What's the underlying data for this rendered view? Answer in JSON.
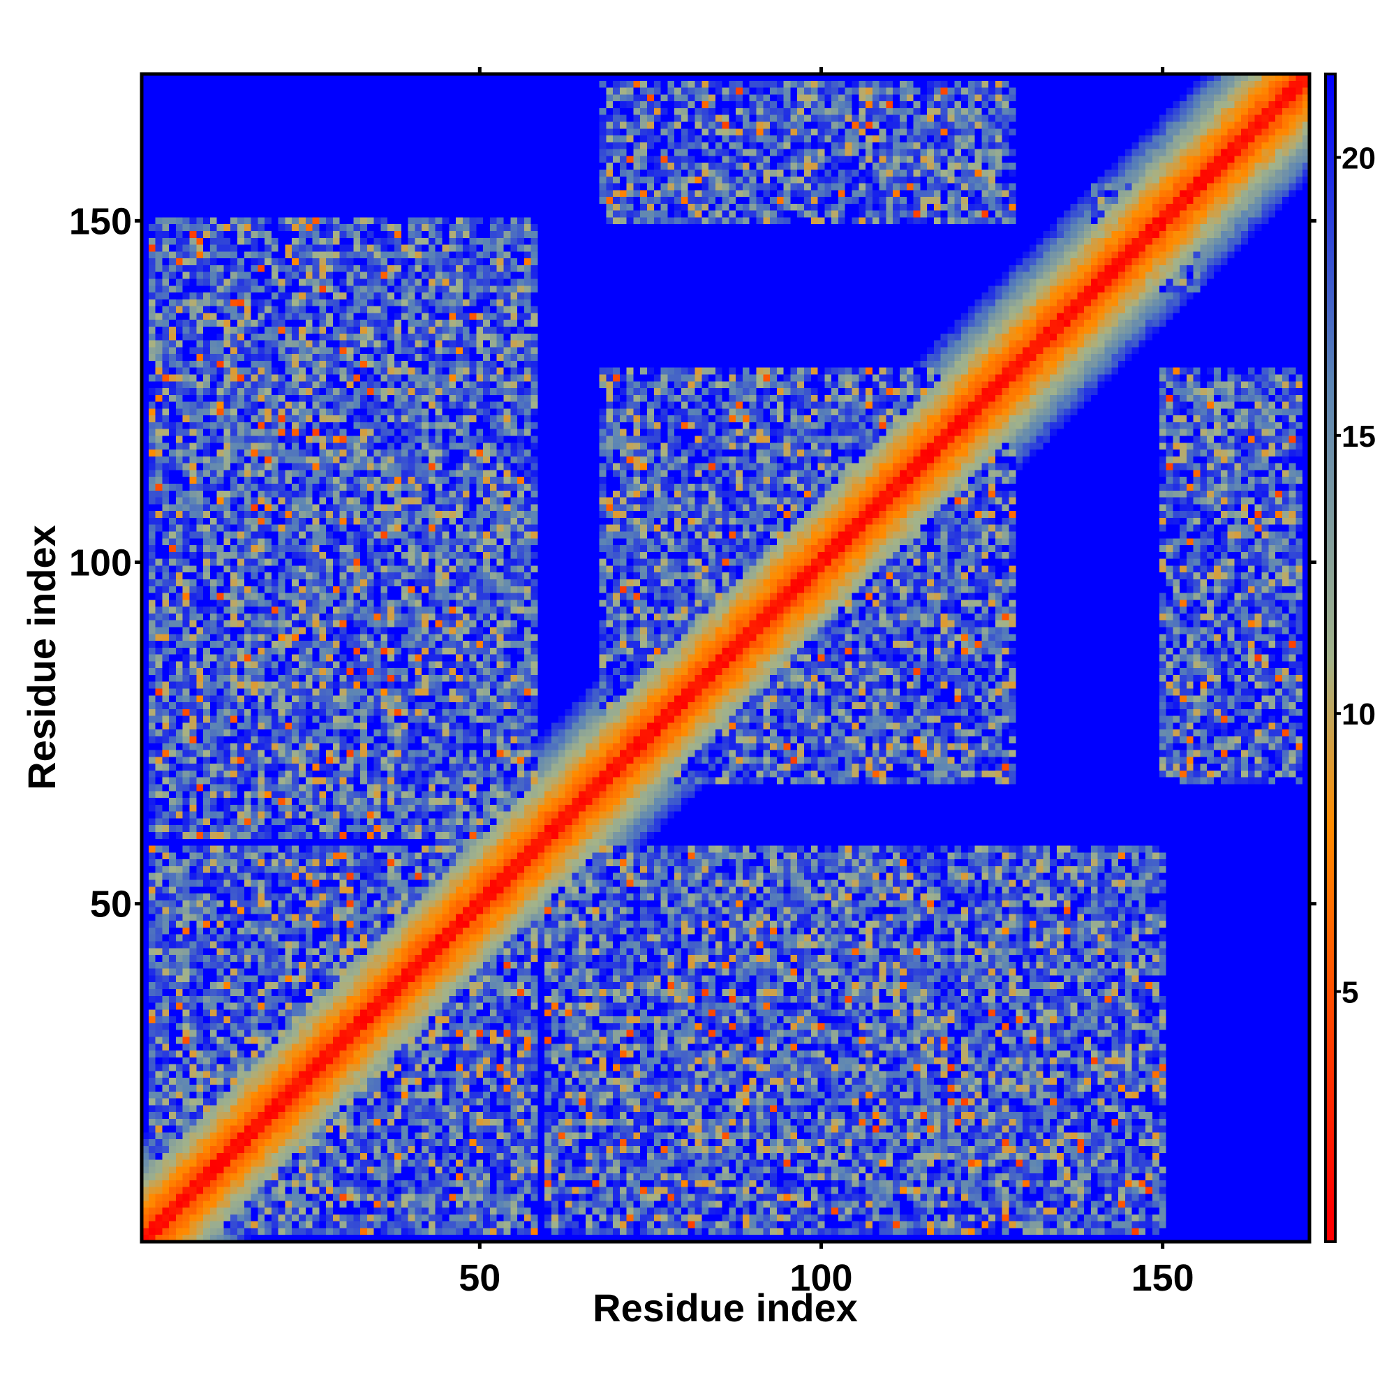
{
  "chart_data": {
    "type": "heatmap",
    "title": "",
    "xlabel": "Residue index",
    "ylabel": "Residue index",
    "n_residues": 171,
    "xlim": [
      1,
      171
    ],
    "ylim": [
      1,
      171
    ],
    "x_ticks": [
      50,
      100,
      150
    ],
    "y_ticks": [
      50,
      100,
      150
    ],
    "colorbar": {
      "range": [
        0.5,
        21.5
      ],
      "ticks": [
        5,
        10,
        15,
        20
      ],
      "colors": [
        "#ff0000",
        "#ff8c00",
        "#a3b38a",
        "#5b84b5",
        "#0000ff"
      ],
      "stops": [
        1,
        8,
        11,
        16,
        21.5
      ]
    },
    "cutoff": 21.5,
    "contact_clusters": [
      {
        "x": [
          2,
          58
        ],
        "y": [
          2,
          58
        ]
      },
      {
        "x": [
          68,
          128
        ],
        "y": [
          68,
          128
        ]
      },
      {
        "x": [
          20,
          140
        ],
        "y": [
          1,
          55
        ]
      },
      {
        "x": [
          68,
          128
        ],
        "y": [
          150,
          170
        ]
      },
      {
        "x": [
          150,
          170
        ],
        "y": [
          68,
          128
        ]
      },
      {
        "x": [
          2,
          58
        ],
        "y": [
          60,
          150
        ]
      },
      {
        "x": [
          60,
          150
        ],
        "y": [
          20,
          60
        ]
      },
      {
        "x": [
          140,
          155
        ],
        "y": [
          140,
          155
        ]
      }
    ]
  }
}
